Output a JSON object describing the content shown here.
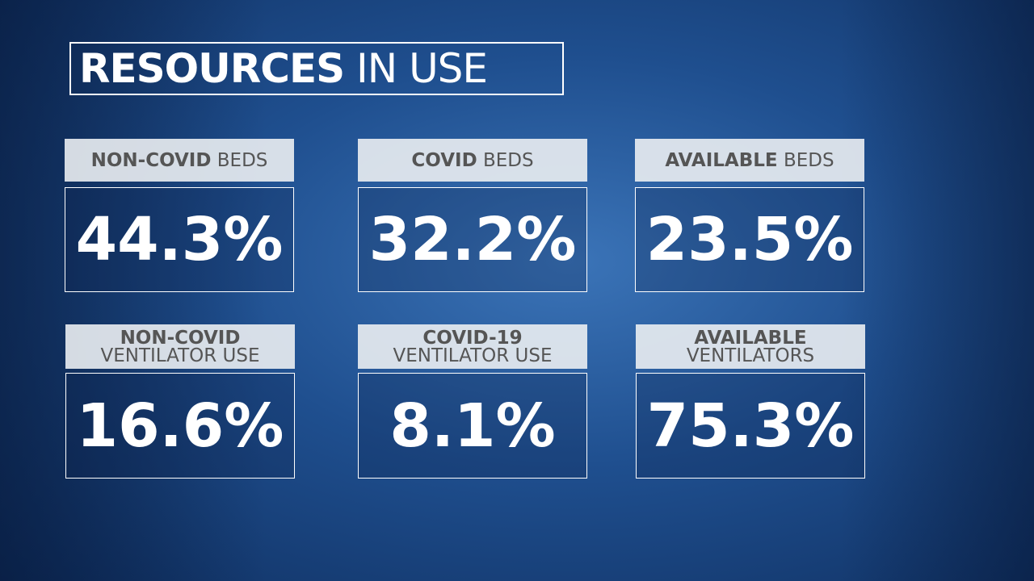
{
  "header": {
    "title_bold": "RESOURCES",
    "title_regular": "IN USE"
  },
  "cards": [
    {
      "label_bold": "NON-COVID",
      "label_regular": "BEDS",
      "value": "44.3%"
    },
    {
      "label_bold": "COVID",
      "label_regular": "BEDS",
      "value": "32.2%"
    },
    {
      "label_bold": "AVAILABLE",
      "label_regular": "BEDS",
      "value": "23.5%"
    },
    {
      "label_bold": "NON-COVID",
      "label_regular": "VENTILATOR USE",
      "value": "16.6%"
    },
    {
      "label_bold": "COVID-19",
      "label_regular": "VENTILATOR USE",
      "value": "8.1%"
    },
    {
      "label_bold": "AVAILABLE",
      "label_regular": "VENTILATORS",
      "value": "75.3%"
    }
  ]
}
